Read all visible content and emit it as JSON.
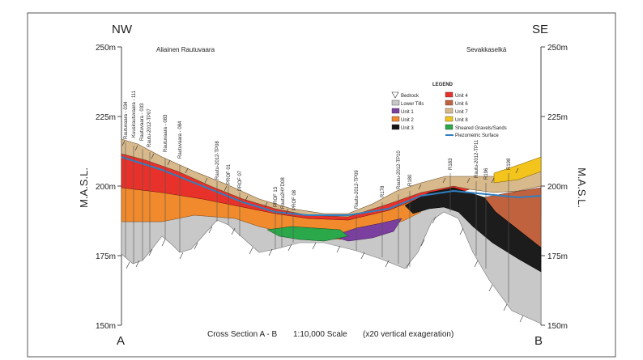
{
  "directions": {
    "left": "NW",
    "right": "SE"
  },
  "section_ends": {
    "left": "A",
    "right": "B"
  },
  "places": {
    "left": "Aliainen Rautuvaara",
    "right": "Sevakkaselkä"
  },
  "axis": {
    "left_label": "M.A.S.L.",
    "right_label": "M.A.S.L.",
    "ticks": [
      "250m",
      "225m",
      "200m",
      "175m",
      "150m"
    ]
  },
  "caption": {
    "title": "Cross Section A - B",
    "scale": "1:10,000 Scale",
    "exaggeration": "(x20 vertical exageration)"
  },
  "legend": {
    "title": "LEGEND",
    "items": [
      {
        "label": "Bedrock",
        "color": "#ffffff"
      },
      {
        "label": "Lower Tills",
        "color": "#c8c8c8"
      },
      {
        "label": "Unit 1",
        "color": "#7b3fa0"
      },
      {
        "label": "Unit 2",
        "color": "#f08a2c"
      },
      {
        "label": "Unit 3",
        "color": "#141414"
      },
      {
        "label": "Unit 4",
        "color": "#e8312a"
      },
      {
        "label": "Unit 6",
        "color": "#c0623e"
      },
      {
        "label": "Unit 7",
        "color": "#d7b98c"
      },
      {
        "label": "Unit 8",
        "color": "#f2c41c"
      },
      {
        "label": "Sheared Gravels/Sands",
        "color": "#2aa84a"
      },
      {
        "label": "Piezometric Surface",
        "color": "#2f7fc1"
      }
    ]
  },
  "boreholes": [
    "Rautuvaara - 034",
    "Kuusirautuvaara - 111",
    "Rautuvaara - 033",
    "Rautu-2012-TP07",
    "Rautuvaara - 083",
    "Rautuvaara - 084",
    "Rautu-2012-TP08",
    "PROF 01",
    "PROF 07",
    "PROF 13",
    "Rautu2HYD08",
    "PROF 08",
    "Rautu-2012-TP09",
    "R178",
    "Rautu-2012-TP10",
    "R180",
    "R183",
    "Rautu-2012-TP11",
    "R196",
    "R198"
  ]
}
